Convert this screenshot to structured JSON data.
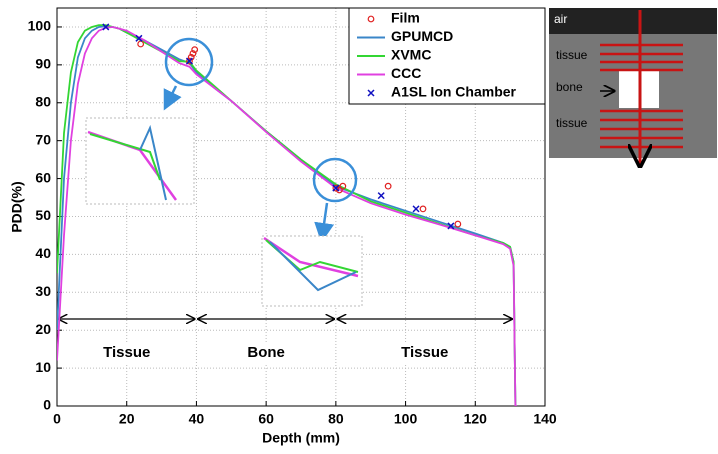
{
  "chart_data": {
    "type": "line",
    "x_label": "Depth (mm)",
    "y_label": "PDD(%)",
    "xlim": [
      0,
      140
    ],
    "ylim": [
      0,
      105
    ],
    "xticks": [
      0,
      20,
      40,
      60,
      80,
      100,
      120,
      140
    ],
    "yticks": [
      0,
      10,
      20,
      30,
      40,
      50,
      60,
      70,
      80,
      90,
      100
    ],
    "grid": true,
    "legend": "upper right",
    "series": [
      {
        "name": "Film",
        "color": "#e02020",
        "style": "circle",
        "x": [
          24,
          38,
          38.5,
          39,
          39.5,
          80,
          81,
          82,
          95,
          105,
          115
        ],
        "values": [
          95.5,
          91,
          92,
          93,
          94,
          57.5,
          57,
          58,
          58,
          52,
          48
        ]
      },
      {
        "name": "GPUMCD",
        "color": "#3a86c8",
        "style": "line",
        "x": [
          0,
          2,
          4,
          6,
          8,
          10,
          12,
          14,
          16,
          18,
          20,
          25,
          30,
          35,
          38,
          40,
          45,
          50,
          60,
          70,
          80,
          90,
          100,
          110,
          120,
          128,
          130,
          131,
          131.5,
          132
        ],
        "values": [
          20,
          60,
          80,
          92,
          97,
          99,
          100,
          100.2,
          100,
          99.5,
          98.5,
          96.5,
          94,
          91.5,
          90.5,
          88,
          84,
          80.5,
          72.5,
          65,
          58,
          54.5,
          51.5,
          48.5,
          45.5,
          43,
          42,
          38,
          0,
          0
        ]
      },
      {
        "name": "XVMC",
        "color": "#33d633",
        "style": "line",
        "x": [
          0,
          2,
          4,
          6,
          8,
          10,
          12,
          14,
          16,
          18,
          20,
          25,
          30,
          35,
          38,
          40,
          45,
          50,
          60,
          70,
          80,
          90,
          100,
          110,
          120,
          128,
          130,
          131,
          131.5,
          132
        ],
        "values": [
          35,
          72,
          88,
          96,
          99,
          100,
          100.5,
          100.5,
          100,
          99.5,
          98.5,
          96,
          93.5,
          91,
          90.8,
          88.5,
          84.5,
          80.5,
          72.5,
          65,
          58.5,
          54,
          51,
          48,
          45,
          43,
          42,
          38,
          0,
          0
        ]
      },
      {
        "name": "CCC",
        "color": "#e040e0",
        "style": "line",
        "x": [
          0,
          2,
          4,
          6,
          8,
          10,
          12,
          14,
          16,
          18,
          20,
          25,
          30,
          35,
          38,
          40,
          45,
          50,
          60,
          70,
          80,
          90,
          100,
          110,
          120,
          128,
          130,
          131,
          131.5,
          132
        ],
        "values": [
          12,
          45,
          70,
          85,
          93,
          97,
          99,
          99.8,
          100,
          99.5,
          99,
          96.5,
          93.5,
          90.5,
          89.5,
          87.5,
          84,
          80.5,
          72.3,
          64.5,
          57.5,
          53.5,
          50.5,
          47.8,
          45,
          42.7,
          41.5,
          37,
          0,
          0
        ]
      },
      {
        "name": "A1SL Ion Chamber",
        "color": "#1010c0",
        "style": "cross",
        "x": [
          14,
          23.5,
          38,
          80,
          93,
          103,
          113
        ],
        "values": [
          100,
          97,
          91,
          57.5,
          55.5,
          52,
          47.5
        ]
      }
    ],
    "regions": [
      {
        "label": "Tissue",
        "start": 0,
        "end": 40
      },
      {
        "label": "Bone",
        "start": 40,
        "end": 80
      },
      {
        "label": "Tissue",
        "start": 80,
        "end": 131
      }
    ]
  },
  "phantom_diagram": {
    "labels": [
      "air",
      "tissue",
      "bone",
      "tissue"
    ]
  }
}
